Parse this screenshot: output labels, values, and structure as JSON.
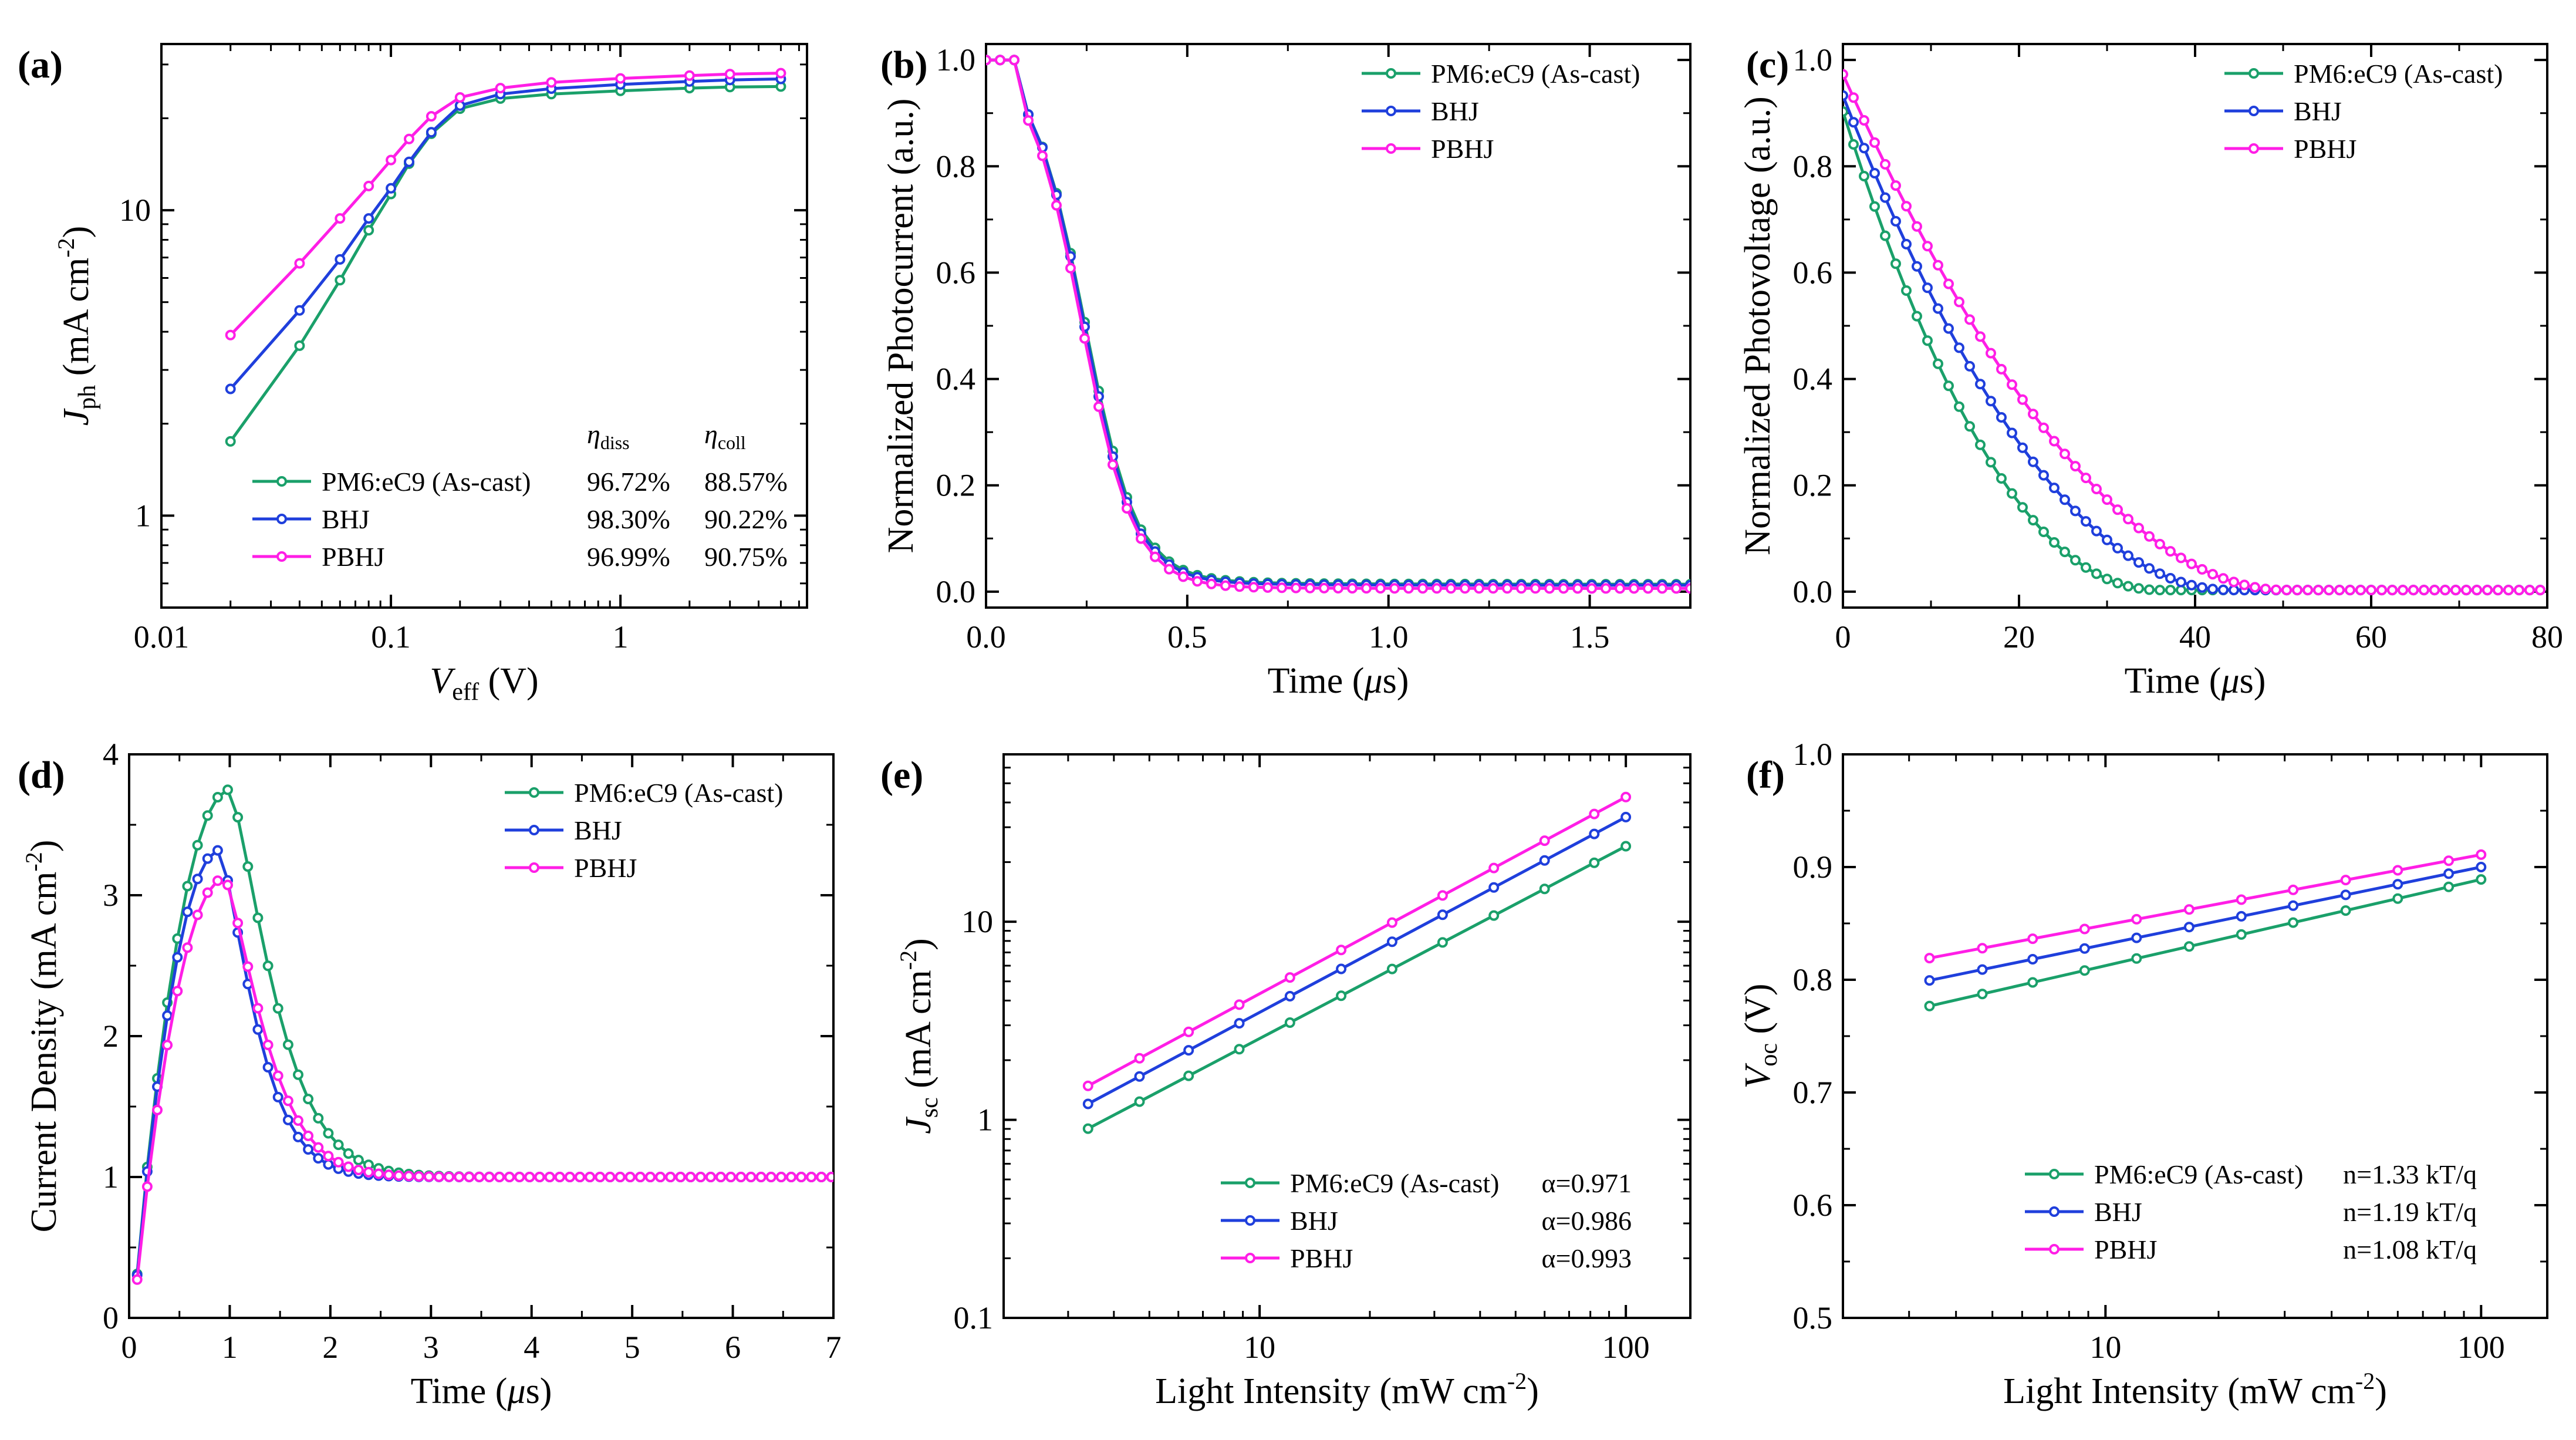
{
  "colors": {
    "PM6:eC9 (As-cast)": "#1aa06a",
    "BHJ": "#1f3fdc",
    "PBHJ": "#ff1ee6"
  },
  "chart_data": [
    {
      "id": "a",
      "panel_label": "(a)",
      "type": "line",
      "xscale": "log",
      "yscale": "log",
      "xlim": [
        0.01,
        6.5
      ],
      "ylim": [
        0.5,
        35
      ],
      "xticks": [
        0.01,
        0.1,
        1
      ],
      "xtick_labels": [
        "0.01",
        "0.1",
        "1"
      ],
      "yticks": [
        1,
        10
      ],
      "ytick_labels": [
        "1",
        "10"
      ],
      "xlabel": {
        "main": "V",
        "sub": "eff",
        "rest": " (V)"
      },
      "ylabel": {
        "main": "J",
        "sub": "ph",
        "rest": " (mA cm",
        "sup": "-2",
        "end": ")"
      },
      "legend_header": {
        "col1_main": "η",
        "col1_sub": "diss",
        "col2_main": "η",
        "col2_sub": "coll"
      },
      "series": [
        {
          "name": "PM6:eC9 (As-cast)",
          "col1": "96.72%",
          "col2": "88.57%",
          "points": [
            [
              0.02,
              1.75
            ],
            [
              0.04,
              3.6
            ],
            [
              0.06,
              5.9
            ],
            [
              0.08,
              8.6
            ],
            [
              0.1,
              11.3
            ],
            [
              0.12,
              14.2
            ],
            [
              0.15,
              17.8
            ],
            [
              0.2,
              21.5
            ],
            [
              0.3,
              23.2
            ],
            [
              0.5,
              24.0
            ],
            [
              1,
              24.6
            ],
            [
              2,
              25.1
            ],
            [
              3,
              25.3
            ],
            [
              5,
              25.4
            ]
          ]
        },
        {
          "name": "BHJ",
          "col1": "98.30%",
          "col2": "90.22%",
          "points": [
            [
              0.02,
              2.6
            ],
            [
              0.04,
              4.7
            ],
            [
              0.06,
              6.9
            ],
            [
              0.08,
              9.4
            ],
            [
              0.1,
              11.8
            ],
            [
              0.12,
              14.4
            ],
            [
              0.15,
              18.0
            ],
            [
              0.2,
              22.0
            ],
            [
              0.3,
              24.0
            ],
            [
              0.5,
              25.0
            ],
            [
              1,
              25.8
            ],
            [
              2,
              26.4
            ],
            [
              3,
              26.7
            ],
            [
              5,
              26.9
            ]
          ]
        },
        {
          "name": "PBHJ",
          "col1": "96.99%",
          "col2": "90.75%",
          "points": [
            [
              0.02,
              3.9
            ],
            [
              0.04,
              6.7
            ],
            [
              0.06,
              9.4
            ],
            [
              0.08,
              12.0
            ],
            [
              0.1,
              14.6
            ],
            [
              0.12,
              17.1
            ],
            [
              0.15,
              20.3
            ],
            [
              0.2,
              23.4
            ],
            [
              0.3,
              25.1
            ],
            [
              0.5,
              26.2
            ],
            [
              1,
              27.0
            ],
            [
              2,
              27.6
            ],
            [
              3,
              27.9
            ],
            [
              5,
              28.1
            ]
          ]
        }
      ]
    },
    {
      "id": "b",
      "panel_label": "(b)",
      "type": "line",
      "xscale": "linear",
      "yscale": "linear",
      "xlim": [
        0,
        1.75
      ],
      "ylim": [
        -0.03,
        1.03
      ],
      "xticks": [
        0,
        0.5,
        1.0,
        1.5
      ],
      "xtick_labels": [
        "0.0",
        "0.5",
        "1.0",
        "1.5"
      ],
      "yticks": [
        0,
        0.2,
        0.4,
        0.6,
        0.8,
        1.0
      ],
      "ytick_labels": [
        "0.0",
        "0.2",
        "0.4",
        "0.6",
        "0.8",
        "1.0"
      ],
      "xlabel": {
        "main": "Time (",
        "italic": "μ",
        "rest": "s)"
      },
      "ylabel": {
        "main": "Normalized Photocurrent (a.u.)"
      },
      "series": [
        {
          "name": "PM6:eC9 (As-cast)",
          "model": "sigmoid",
          "t0": 0.245,
          "w": 0.065,
          "floor": 0.014,
          "tail": 0.2
        },
        {
          "name": "BHJ",
          "model": "sigmoid",
          "t0": 0.243,
          "w": 0.064,
          "floor": 0.012,
          "tail": 0.2
        },
        {
          "name": "PBHJ",
          "model": "sigmoid",
          "t0": 0.238,
          "w": 0.065,
          "floor": 0.006,
          "tail": 0.2
        }
      ]
    },
    {
      "id": "c",
      "panel_label": "(c)",
      "type": "line",
      "xscale": "linear",
      "yscale": "linear",
      "xlim": [
        0,
        80
      ],
      "ylim": [
        -0.03,
        1.03
      ],
      "xticks": [
        0,
        20,
        40,
        60,
        80
      ],
      "xtick_labels": [
        "0",
        "20",
        "40",
        "60",
        "80"
      ],
      "yticks": [
        0,
        0.2,
        0.4,
        0.6,
        0.8,
        1.0
      ],
      "ytick_labels": [
        "0.0",
        "0.2",
        "0.4",
        "0.6",
        "0.8",
        "1.0"
      ],
      "xlabel": {
        "main": "Time (",
        "italic": "μ",
        "rest": "s)"
      },
      "ylabel": {
        "main": "Normalized Photovoltage (a.u.)"
      },
      "series": [
        {
          "name": "PM6:eC9 (As-cast)",
          "model": "decay",
          "y0": 0.9,
          "T": 36,
          "p": 2.1
        },
        {
          "name": "BHJ",
          "model": "decay",
          "y0": 0.93,
          "T": 44,
          "p": 2.0
        },
        {
          "name": "PBHJ",
          "model": "decay",
          "y0": 0.97,
          "T": 50,
          "p": 1.9
        }
      ]
    },
    {
      "id": "d",
      "panel_label": "(d)",
      "type": "line",
      "xscale": "linear",
      "yscale": "linear",
      "xlim": [
        0,
        7
      ],
      "ylim": [
        0,
        4
      ],
      "xticks": [
        0,
        1,
        2,
        3,
        4,
        5,
        6,
        7
      ],
      "xtick_labels": [
        "0",
        "1",
        "2",
        "3",
        "4",
        "5",
        "6",
        "7"
      ],
      "yticks": [
        0,
        1,
        2,
        3,
        4
      ],
      "ytick_labels": [
        "0",
        "1",
        "2",
        "3",
        "4"
      ],
      "xlabel": {
        "main": "Time (",
        "italic": "μ",
        "rest": "s)"
      },
      "ylabel": {
        "main": "Current Density (mA cm",
        "sup": "-2",
        "end": ")"
      },
      "series": [
        {
          "name": "PM6:eC9 (As-cast)",
          "model": "pulse",
          "peak": 3.75,
          "tp": 1.0,
          "rise": 0.35,
          "decay": 0.55
        },
        {
          "name": "BHJ",
          "model": "pulse",
          "peak": 3.32,
          "tp": 0.9,
          "rise": 0.32,
          "decay": 0.45
        },
        {
          "name": "PBHJ",
          "model": "pulse",
          "peak": 3.12,
          "tp": 0.95,
          "rise": 0.35,
          "decay": 0.5
        }
      ]
    },
    {
      "id": "e",
      "panel_label": "(e)",
      "type": "line",
      "xscale": "log",
      "yscale": "log",
      "xlim": [
        2,
        150
      ],
      "ylim": [
        0.1,
        70
      ],
      "xticks": [
        10,
        100
      ],
      "xtick_labels": [
        "10",
        "100"
      ],
      "yticks": [
        0.1,
        1,
        10
      ],
      "ytick_labels": [
        "0.1",
        "1",
        "10"
      ],
      "xlabel": {
        "main": "Light Intensity (mW cm",
        "sup": "-2",
        "end": ")"
      },
      "ylabel": {
        "main": "J",
        "sub": "sc",
        "rest": " (mA cm",
        "sup": "-2",
        "end": ")"
      },
      "series": [
        {
          "name": "PM6:eC9 (As-cast)",
          "annotation": "α=0.971",
          "model": "power",
          "a": 0.275,
          "alpha": 0.971
        },
        {
          "name": "BHJ",
          "annotation": "α=0.986",
          "model": "power",
          "a": 0.36,
          "alpha": 0.986
        },
        {
          "name": "PBHJ",
          "annotation": "α=0.993",
          "model": "power",
          "a": 0.44,
          "alpha": 0.993
        }
      ],
      "x_points": [
        3.4,
        4.7,
        6.4,
        8.8,
        12.1,
        16.7,
        23.0,
        31.6,
        43.6,
        60.0,
        82.0,
        100
      ]
    },
    {
      "id": "f",
      "panel_label": "(f)",
      "type": "line",
      "xscale": "log",
      "yscale": "linear",
      "xlim": [
        2,
        150
      ],
      "ylim": [
        0.5,
        1.0
      ],
      "xticks": [
        10,
        100
      ],
      "xtick_labels": [
        "10",
        "100"
      ],
      "yticks": [
        0.5,
        0.6,
        0.7,
        0.8,
        0.9,
        1.0
      ],
      "ytick_labels": [
        "0.5",
        "0.6",
        "0.7",
        "0.8",
        "0.9",
        "1.0"
      ],
      "xlabel": {
        "main": "Light Intensity (mW cm",
        "sup": "-2",
        "end": ")"
      },
      "ylabel": {
        "main": "V",
        "sub": "oc",
        "rest": " (V)"
      },
      "series": [
        {
          "name": "PM6:eC9 (As-cast)",
          "annotation": "n=1.33 kT/q",
          "model": "loglin",
          "y_at_100": 0.889,
          "slope_per_decade": 0.0765
        },
        {
          "name": "BHJ",
          "annotation": "n=1.19 kT/q",
          "model": "loglin",
          "y_at_100": 0.9,
          "slope_per_decade": 0.0685
        },
        {
          "name": "PBHJ",
          "annotation": "n=1.08 kT/q",
          "model": "loglin",
          "y_at_100": 0.911,
          "slope_per_decade": 0.0625
        }
      ],
      "x_points": [
        3.4,
        4.7,
        6.4,
        8.8,
        12.1,
        16.7,
        23.0,
        31.6,
        43.6,
        60.0,
        82.0,
        100
      ]
    }
  ]
}
